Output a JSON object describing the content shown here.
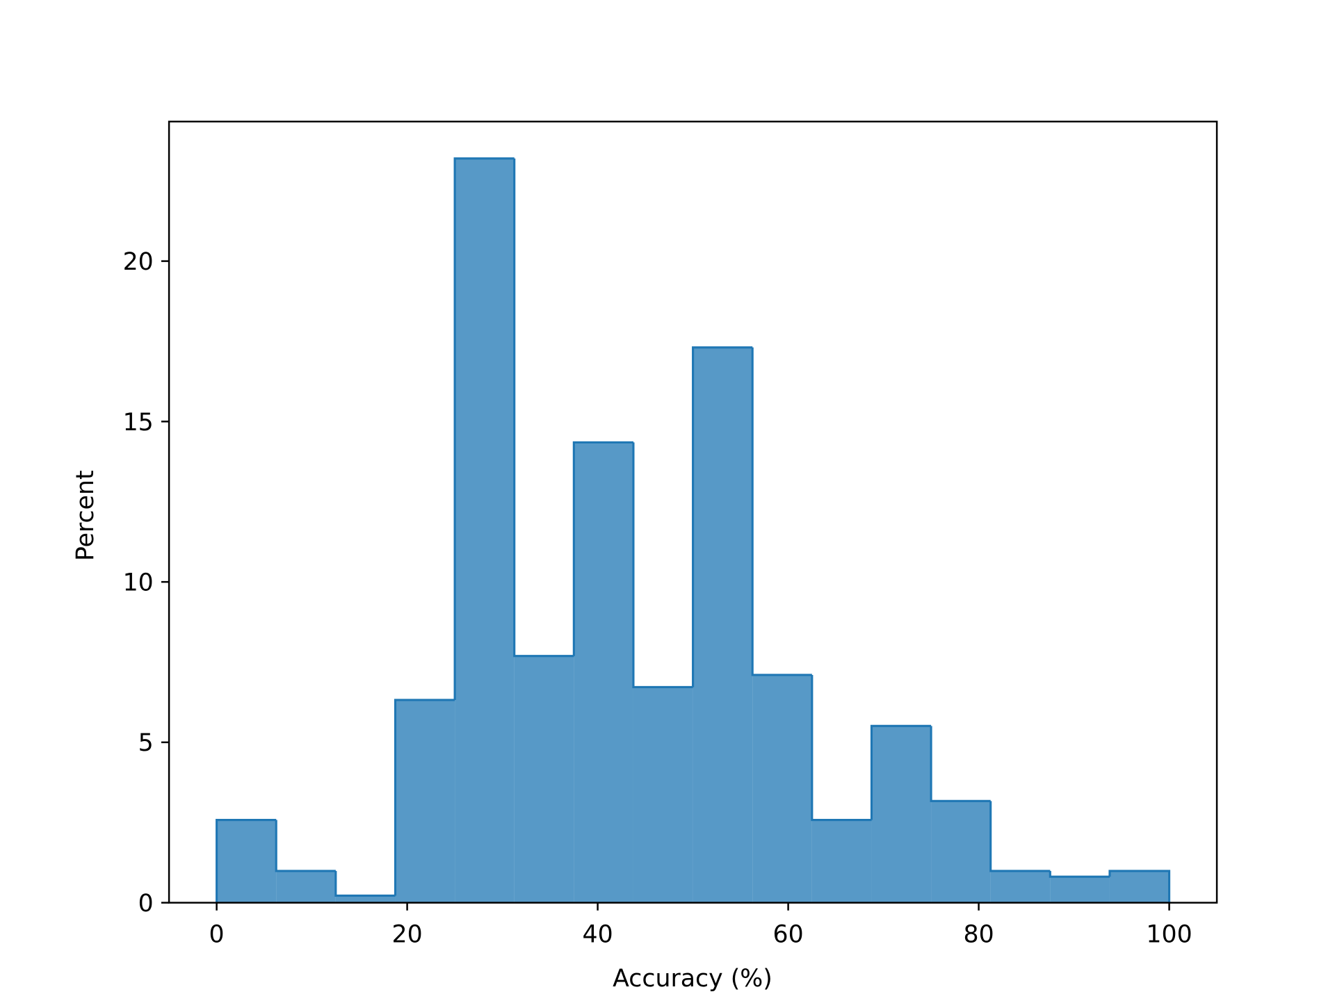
{
  "chart_data": {
    "type": "histogram",
    "x_label": "Accuracy (%)",
    "y_label": "Percent",
    "bins": [
      0,
      6.25,
      12.5,
      18.75,
      25,
      31.25,
      37.5,
      43.75,
      50,
      56.25,
      62.5,
      68.75,
      75,
      81.25,
      87.5,
      93.75,
      100
    ],
    "values": [
      2.58,
      0.99,
      0.22,
      6.32,
      23.2,
      7.69,
      14.35,
      6.72,
      17.31,
      7.1,
      2.58,
      5.51,
      3.17,
      0.99,
      0.81,
      0.99
    ],
    "color": "#1f77b4",
    "fill_opacity": 0.75,
    "xlim": [
      -5,
      105
    ],
    "xticks": [
      0,
      20,
      40,
      60,
      80,
      100
    ],
    "ylim": [
      0,
      24.35
    ],
    "yticks": [
      0,
      5,
      10,
      15,
      20
    ]
  }
}
